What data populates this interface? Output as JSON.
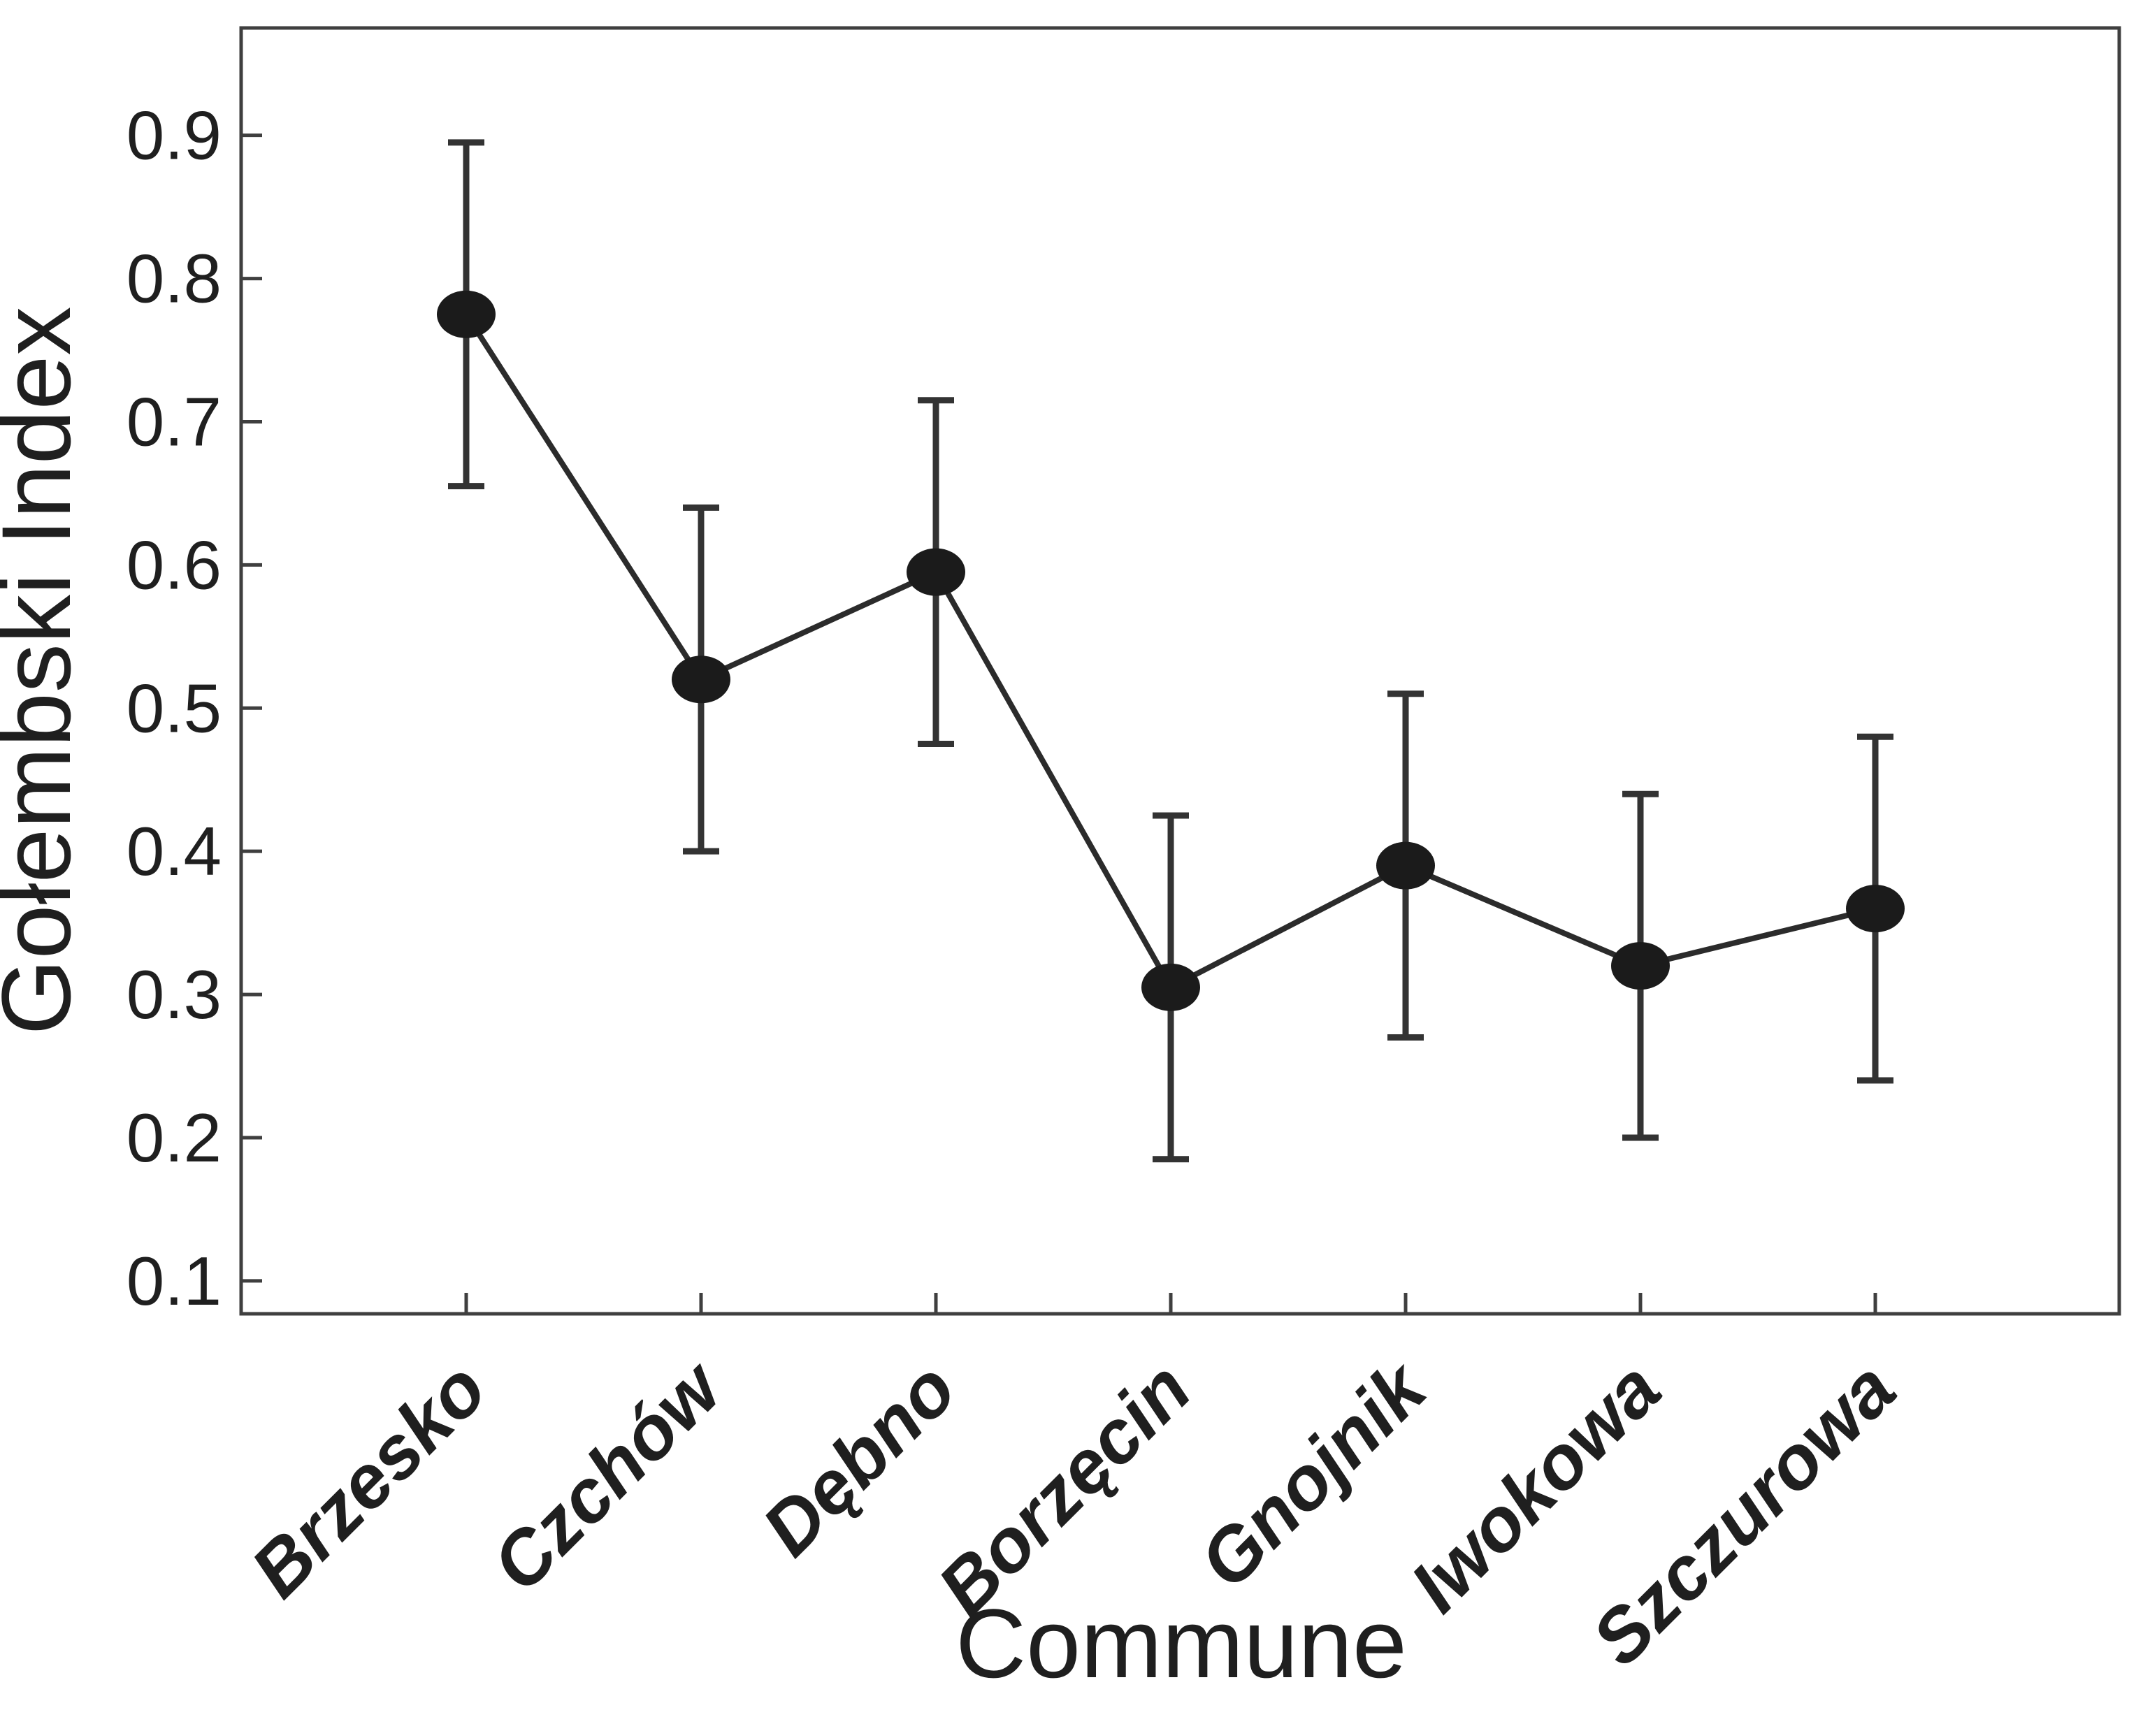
{
  "figure": {
    "background": "#ffffff",
    "ylabel": "Gołembski Index",
    "xlabel": "Commune"
  },
  "chart_data": {
    "type": "line",
    "title": "",
    "xlabel": "Commune",
    "ylabel": "Gołembski Index",
    "categories": [
      "Brzesko",
      "Czchów",
      "Dębno",
      "Borzęcin",
      "Gnojnik",
      "Iwokowa",
      "Szczurowa"
    ],
    "series": [
      {
        "name": "Gołembski Index",
        "values": [
          0.775,
          0.52,
          0.595,
          0.305,
          0.39,
          0.32,
          0.36
        ],
        "error_low": [
          0.655,
          0.4,
          0.475,
          0.185,
          0.27,
          0.2,
          0.24
        ],
        "error_high": [
          0.895,
          0.64,
          0.715,
          0.425,
          0.51,
          0.44,
          0.48
        ]
      }
    ],
    "ylim": [
      0.077,
      0.975
    ],
    "yticks": [
      0.1,
      0.2,
      0.3,
      0.4,
      0.5,
      0.6,
      0.7,
      0.8,
      0.9
    ],
    "ytick_labels": [
      "0.1",
      "0.2",
      "0.3",
      "0.4",
      "0.5",
      "0.6",
      "0.7",
      "0.8",
      "0.9"
    ],
    "grid": false,
    "legend": "none",
    "marker": "filled-ellipse",
    "error_bars": "vertical-with-caps",
    "x_label_rotation_deg": 45,
    "colors": {
      "line": "#2b2b2b",
      "marker": "#1b1b1b",
      "error_bar": "#333333",
      "axis_frame": "#3f3f3f",
      "text": "#1f1f1f",
      "background": "#ffffff"
    }
  }
}
